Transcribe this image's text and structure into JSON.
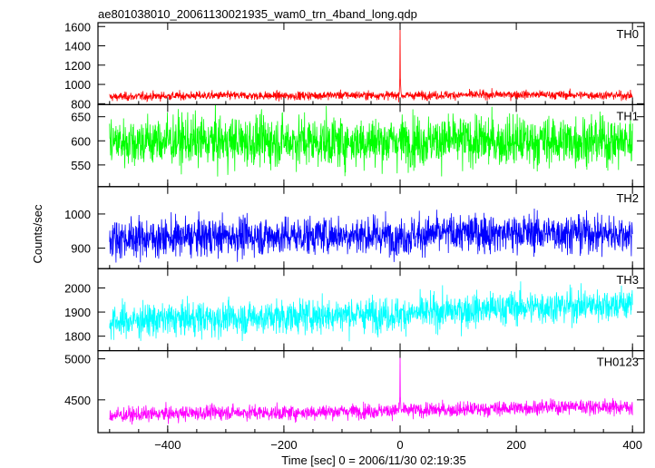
{
  "chart_data": {
    "type": "line",
    "title": "ae801038010_20061130021935_wam0_trn_4band_long.qdp",
    "xlabel": "Time [sec] 0 = 2006/11/30 02:19:35",
    "ylabel": "Counts/sec",
    "xlim": [
      -520,
      420
    ],
    "xticks": [
      -400,
      -200,
      0,
      200,
      400
    ],
    "x_sampling": {
      "start": -500,
      "end": 400,
      "step": 0.5
    },
    "panels": [
      {
        "name": "TH0",
        "color": "#ff0000",
        "ylim": [
          790,
          1640
        ],
        "yticks": [
          800,
          1000,
          1200,
          1400,
          1600
        ],
        "trend": [
          [
            -500,
            870
          ],
          [
            -400,
            880
          ],
          [
            -300,
            885
          ],
          [
            -200,
            880
          ],
          [
            -100,
            890
          ],
          [
            0,
            885
          ],
          [
            100,
            890
          ],
          [
            200,
            895
          ],
          [
            300,
            890
          ],
          [
            400,
            885
          ]
        ],
        "noise_sigma": 22,
        "spikes": [
          {
            "x": 0,
            "peak": 1640
          }
        ]
      },
      {
        "name": "TH1",
        "color": "#00ff00",
        "ylim": [
          505,
          675
        ],
        "yticks": [
          550,
          600,
          650
        ],
        "trend": [
          [
            -500,
            598
          ],
          [
            -400,
            600
          ],
          [
            -300,
            598
          ],
          [
            -200,
            600
          ],
          [
            -100,
            598
          ],
          [
            0,
            600
          ],
          [
            100,
            600
          ],
          [
            200,
            598
          ],
          [
            300,
            600
          ],
          [
            400,
            598
          ]
        ],
        "noise_sigma": 26,
        "spikes": []
      },
      {
        "name": "TH2",
        "color": "#0000ff",
        "ylim": [
          840,
          1080
        ],
        "yticks": [
          900,
          1000
        ],
        "trend": [
          [
            -500,
            930
          ],
          [
            -400,
            930
          ],
          [
            -300,
            935
          ],
          [
            -200,
            935
          ],
          [
            -100,
            940
          ],
          [
            0,
            935
          ],
          [
            100,
            945
          ],
          [
            200,
            945
          ],
          [
            300,
            945
          ],
          [
            400,
            940
          ]
        ],
        "noise_sigma": 28,
        "spikes": []
      },
      {
        "name": "TH3",
        "color": "#00ffff",
        "ylim": [
          1740,
          2080
        ],
        "yticks": [
          1800,
          1900,
          2000
        ],
        "trend": [
          [
            -500,
            1860
          ],
          [
            -400,
            1870
          ],
          [
            -300,
            1875
          ],
          [
            -200,
            1880
          ],
          [
            -100,
            1890
          ],
          [
            0,
            1890
          ],
          [
            100,
            1905
          ],
          [
            200,
            1920
          ],
          [
            300,
            1925
          ],
          [
            400,
            1935
          ]
        ],
        "noise_sigma": 35,
        "spikes": []
      },
      {
        "name": "TH0123",
        "color": "#ff00ff",
        "ylim": [
          4100,
          5100
        ],
        "yticks": [
          4500,
          5000
        ],
        "trend": [
          [
            -500,
            4310
          ],
          [
            -400,
            4330
          ],
          [
            -300,
            4350
          ],
          [
            -200,
            4340
          ],
          [
            -100,
            4360
          ],
          [
            0,
            4370
          ],
          [
            100,
            4380
          ],
          [
            200,
            4400
          ],
          [
            300,
            4420
          ],
          [
            400,
            4410
          ]
        ],
        "noise_sigma": 45,
        "spikes": [
          {
            "x": 0,
            "peak": 5080
          }
        ]
      }
    ]
  }
}
